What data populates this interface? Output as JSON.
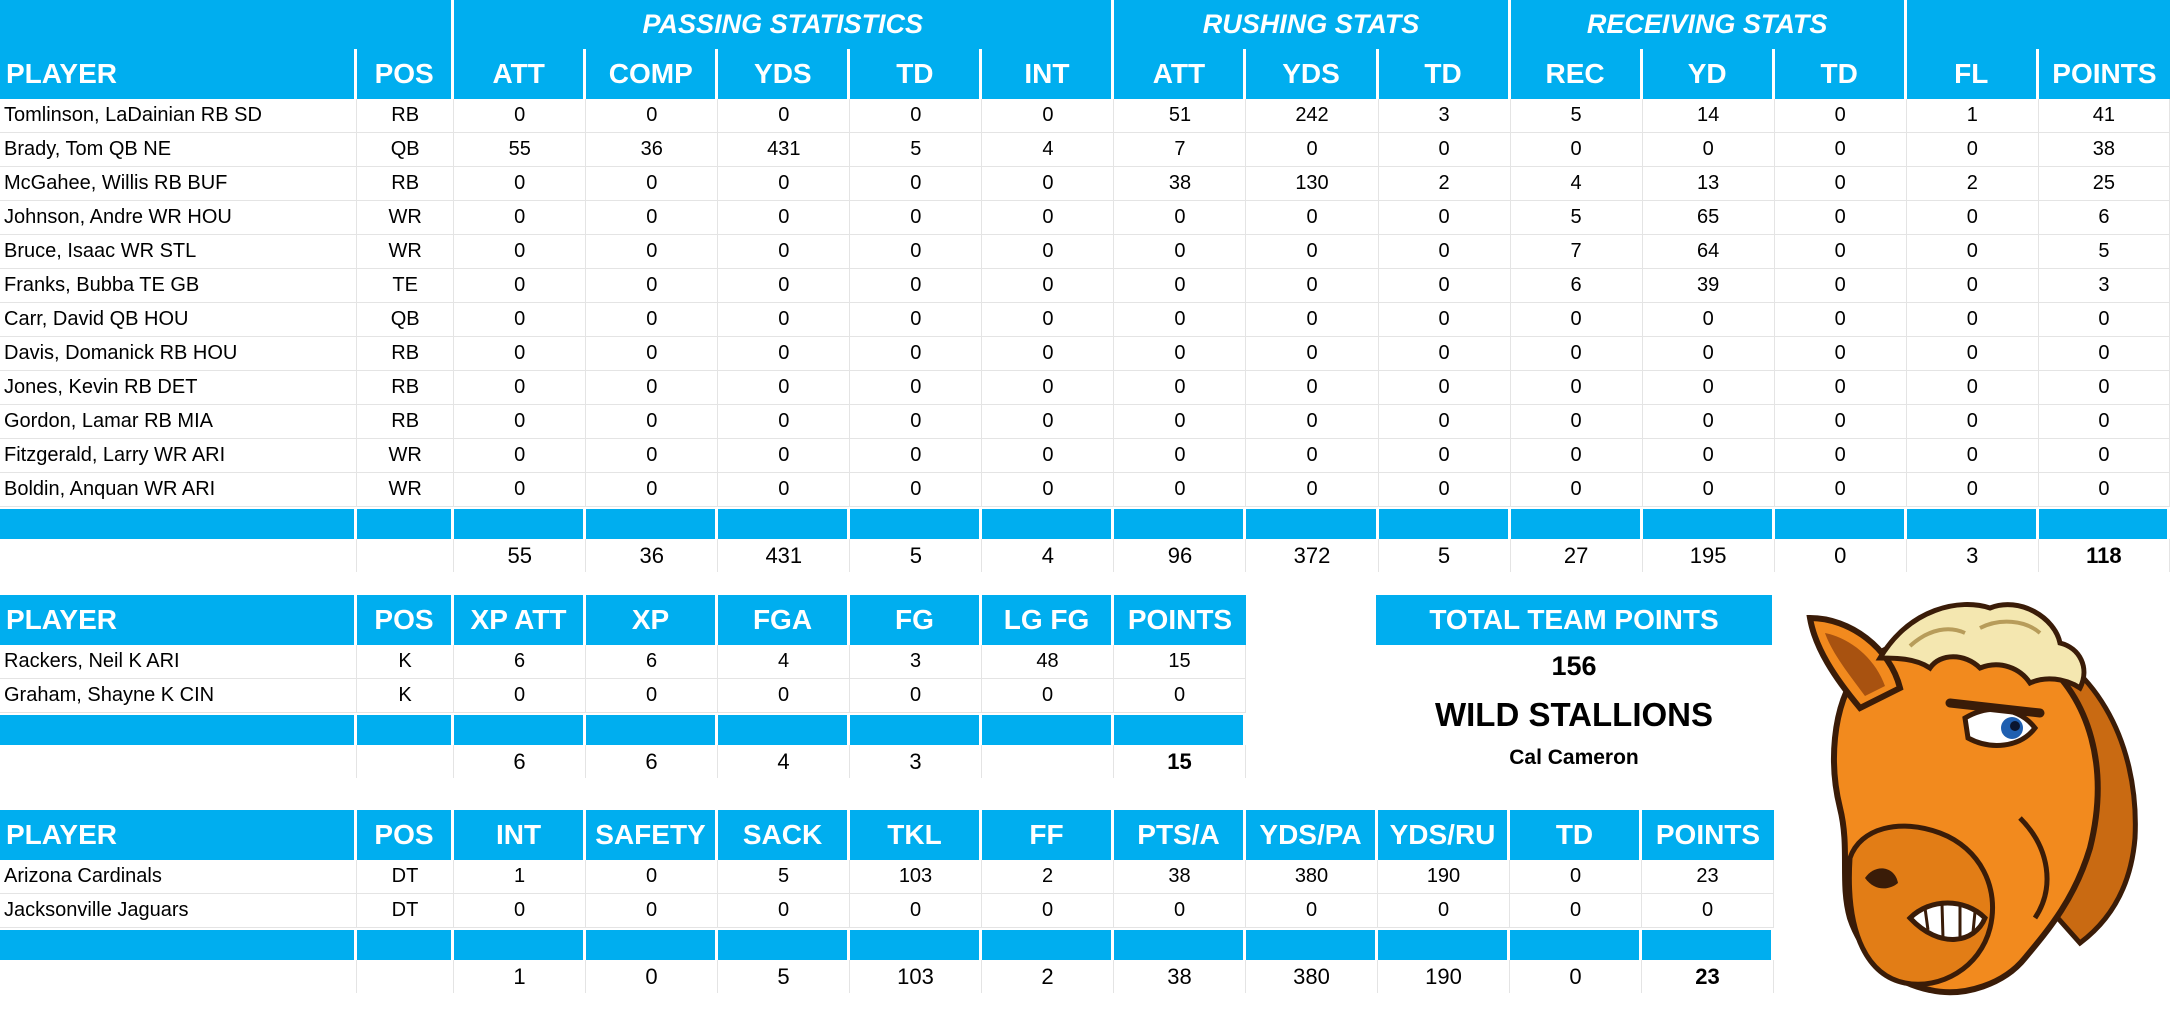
{
  "offense": {
    "group_headers": [
      "PASSING STATISTICS",
      "RUSHING STATS",
      "RECEIVING STATS"
    ],
    "columns": [
      "PLAYER",
      "POS",
      "ATT",
      "COMP",
      "YDS",
      "TD",
      "INT",
      "ATT",
      "YDS",
      "TD",
      "REC",
      "YD",
      "TD",
      "FL",
      "POINTS"
    ],
    "rows": [
      [
        "Tomlinson, LaDainian RB SD",
        "RB",
        "0",
        "0",
        "0",
        "0",
        "0",
        "51",
        "242",
        "3",
        "5",
        "14",
        "0",
        "1",
        "41"
      ],
      [
        "Brady, Tom QB NE",
        "QB",
        "55",
        "36",
        "431",
        "5",
        "4",
        "7",
        "0",
        "0",
        "0",
        "0",
        "0",
        "0",
        "38"
      ],
      [
        "McGahee, Willis RB BUF",
        "RB",
        "0",
        "0",
        "0",
        "0",
        "0",
        "38",
        "130",
        "2",
        "4",
        "13",
        "0",
        "2",
        "25"
      ],
      [
        "Johnson, Andre WR HOU",
        "WR",
        "0",
        "0",
        "0",
        "0",
        "0",
        "0",
        "0",
        "0",
        "5",
        "65",
        "0",
        "0",
        "6"
      ],
      [
        "Bruce, Isaac WR STL",
        "WR",
        "0",
        "0",
        "0",
        "0",
        "0",
        "0",
        "0",
        "0",
        "7",
        "64",
        "0",
        "0",
        "5"
      ],
      [
        "Franks, Bubba TE GB",
        "TE",
        "0",
        "0",
        "0",
        "0",
        "0",
        "0",
        "0",
        "0",
        "6",
        "39",
        "0",
        "0",
        "3"
      ],
      [
        "Carr, David QB HOU",
        "QB",
        "0",
        "0",
        "0",
        "0",
        "0",
        "0",
        "0",
        "0",
        "0",
        "0",
        "0",
        "0",
        "0"
      ],
      [
        "Davis, Domanick RB HOU",
        "RB",
        "0",
        "0",
        "0",
        "0",
        "0",
        "0",
        "0",
        "0",
        "0",
        "0",
        "0",
        "0",
        "0"
      ],
      [
        "Jones, Kevin RB DET",
        "RB",
        "0",
        "0",
        "0",
        "0",
        "0",
        "0",
        "0",
        "0",
        "0",
        "0",
        "0",
        "0",
        "0"
      ],
      [
        "Gordon, Lamar RB MIA",
        "RB",
        "0",
        "0",
        "0",
        "0",
        "0",
        "0",
        "0",
        "0",
        "0",
        "0",
        "0",
        "0",
        "0"
      ],
      [
        "Fitzgerald, Larry WR ARI",
        "WR",
        "0",
        "0",
        "0",
        "0",
        "0",
        "0",
        "0",
        "0",
        "0",
        "0",
        "0",
        "0",
        "0"
      ],
      [
        "Boldin, Anquan WR ARI",
        "WR",
        "0",
        "0",
        "0",
        "0",
        "0",
        "0",
        "0",
        "0",
        "0",
        "0",
        "0",
        "0",
        "0"
      ]
    ],
    "totals": [
      "",
      "",
      "55",
      "36",
      "431",
      "5",
      "4",
      "96",
      "372",
      "5",
      "27",
      "195",
      "0",
      "3",
      "118"
    ]
  },
  "kickers": {
    "columns": [
      "PLAYER",
      "POS",
      "XP ATT",
      "XP",
      "FGA",
      "FG",
      "LG FG",
      "POINTS"
    ],
    "rows": [
      [
        "Rackers, Neil K ARI",
        "K",
        "6",
        "6",
        "4",
        "3",
        "48",
        "15"
      ],
      [
        "Graham, Shayne K CIN",
        "K",
        "0",
        "0",
        "0",
        "0",
        "0",
        "0"
      ]
    ],
    "totals": [
      "",
      "",
      "6",
      "6",
      "4",
      "3",
      "",
      "15"
    ]
  },
  "defense": {
    "columns": [
      "PLAYER",
      "POS",
      "INT",
      "SAFETY",
      "SACK",
      "TKL",
      "FF",
      "PTS/A",
      "YDS/PA",
      "YDS/RU",
      "TD",
      "POINTS"
    ],
    "rows": [
      [
        "Arizona Cardinals",
        "DT",
        "1",
        "0",
        "5",
        "103",
        "2",
        "38",
        "380",
        "190",
        "0",
        "23"
      ],
      [
        "Jacksonville Jaguars",
        "DT",
        "0",
        "0",
        "0",
        "0",
        "0",
        "0",
        "0",
        "0",
        "0",
        "0"
      ]
    ],
    "totals": [
      "",
      "",
      "1",
      "0",
      "5",
      "103",
      "2",
      "38",
      "380",
      "190",
      "0",
      "23"
    ]
  },
  "team_summary": {
    "header": "TOTAL TEAM POINTS",
    "points": "156",
    "team_name": "WILD STALLIONS",
    "owner": "Cal Cameron"
  },
  "logo": {
    "icon": "horse-head-icon",
    "colors": {
      "fur": "#f28a1e",
      "mane": "#f4e7b0",
      "outline": "#3a1c08"
    }
  },
  "colors": {
    "header_blue": "#00aeef",
    "header_text": "#ffffff"
  }
}
